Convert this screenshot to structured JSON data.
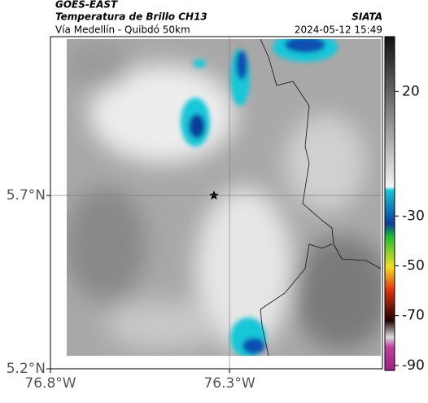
{
  "header": {
    "source": "GOES-EAST",
    "title": "Temperatura de Brillo CH13",
    "org": "SIATA",
    "subtitle": "Vía Medellín - Quibdó 50km",
    "datetime": "2024-05-12 15:49"
  },
  "map": {
    "lat_lim": [
      5.2,
      6.158
    ],
    "lon_lim": [
      -76.8,
      -75.873
    ],
    "lat_ticks": [
      {
        "value": 5.2,
        "label": "5.2°N"
      },
      {
        "value": 5.7,
        "label": "5.7°N"
      }
    ],
    "lon_ticks": [
      {
        "value": -76.8,
        "label": "76.8°W"
      },
      {
        "value": -76.3,
        "label": "76.3°W"
      }
    ],
    "grid_lat": 5.7,
    "grid_lon": -76.3
  },
  "colorbar": {
    "lim": [
      -92,
      42
    ],
    "ticks": [
      20,
      -30,
      -50,
      -70,
      -90
    ]
  }
}
